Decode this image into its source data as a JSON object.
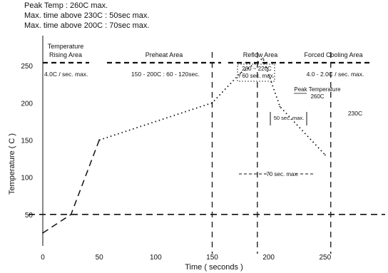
{
  "header": {
    "peak_line": "Peak Temp : 260C max.",
    "time_above_230_line": "Max. time above 230C : 50sec max.",
    "time_above_200_line": "Max. time above 200C : 70sec max."
  },
  "chart_data": {
    "type": "line",
    "title": "",
    "xlabel": "Time ( seconds )",
    "ylabel": "Temperature ( C )",
    "xlim": [
      0,
      300
    ],
    "ylim": [
      0,
      300
    ],
    "x_ticks": [
      0,
      50,
      100,
      150,
      200,
      250
    ],
    "y_ticks": [
      50,
      100,
      150,
      200,
      250
    ],
    "grid": false,
    "series": [
      {
        "style": "dashed",
        "x": [
          0,
          25,
          50
        ],
        "y": [
          25,
          50,
          150
        ]
      },
      {
        "style": "dotted",
        "x": [
          50,
          150,
          175,
          195,
          210,
          250
        ],
        "y": [
          150,
          200,
          240,
          260,
          195,
          130
        ]
      }
    ],
    "reference_lines": [
      {
        "orientation": "horizontal",
        "value": 50,
        "style": "dashed"
      },
      {
        "orientation": "vertical",
        "value": 150,
        "style": "dashed"
      },
      {
        "orientation": "vertical",
        "value": 190,
        "style": "dashed"
      },
      {
        "orientation": "vertical",
        "value": 255,
        "style": "dashed"
      }
    ],
    "zones": [
      {
        "label": "Temperature Rising Area",
        "value_text": "4.0C / sec. max."
      },
      {
        "label": "Preheat Area",
        "value_text": "150 - 200C : 60 - 120sec."
      },
      {
        "label": "Reflow Area",
        "value_text": "260 ~ 220C / 60 sec. max."
      },
      {
        "label": "Forced Cooling Area",
        "value_text": "4.0 - 2.0C / sec. max."
      }
    ],
    "annotations": [
      "Peak Temperature 260C",
      "50 sec. max.",
      "70 sec. max.",
      "230C"
    ]
  }
}
